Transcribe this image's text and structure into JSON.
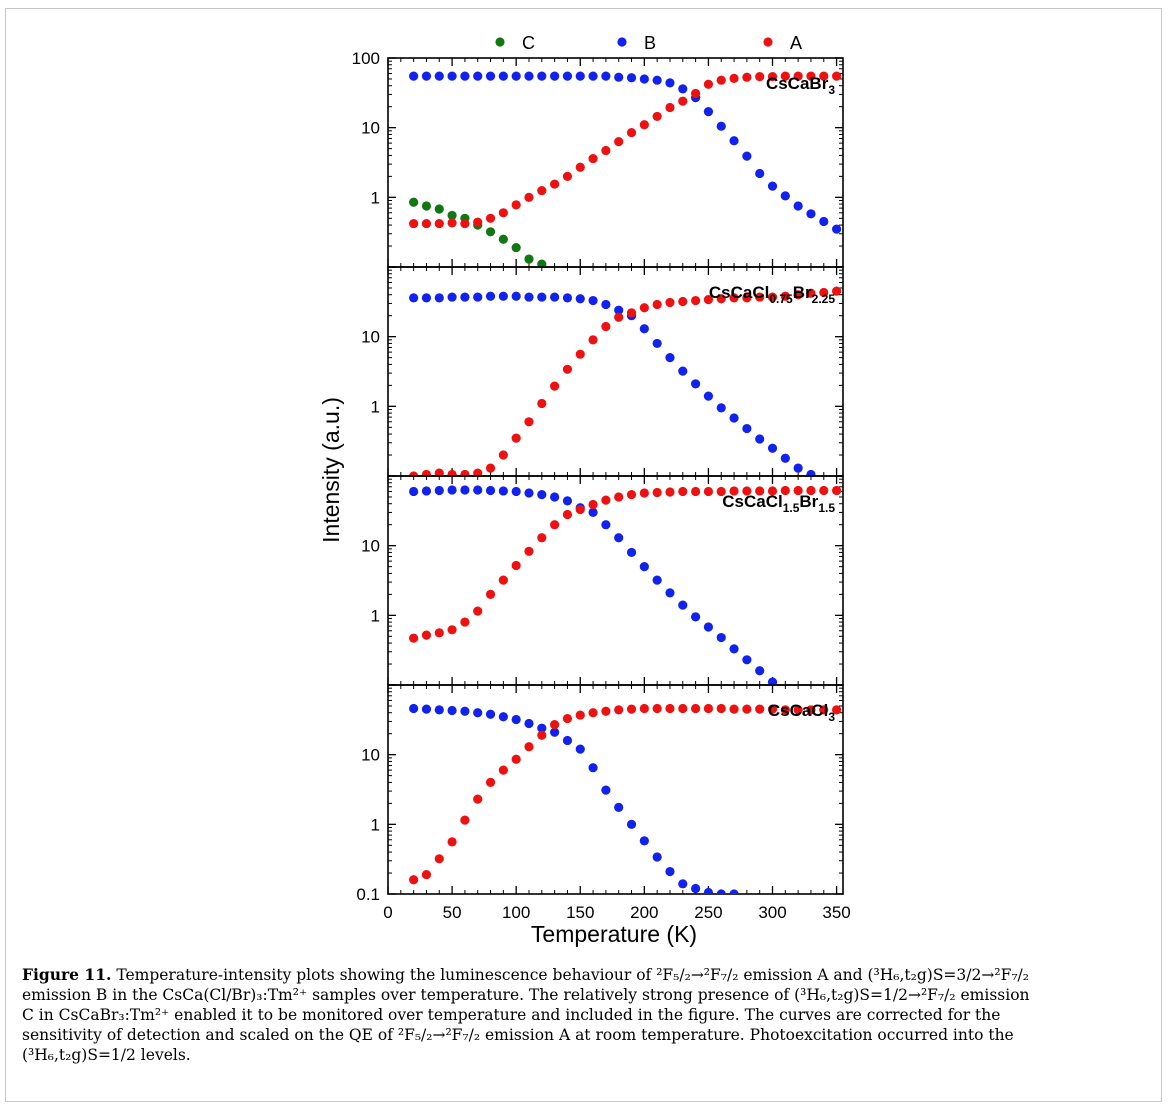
{
  "chart_data": {
    "type": "scatter",
    "xlabel": "Temperature (K)",
    "ylabel": "Intensity (a.u.)",
    "xlim": [
      0,
      355
    ],
    "x_ticks": [
      0,
      50,
      100,
      150,
      200,
      250,
      300,
      350
    ],
    "log_y": true,
    "legend": {
      "placement": "top",
      "entries": [
        "C",
        "B",
        "A"
      ]
    },
    "colors": {
      "A": "#ee1111",
      "B": "#1122ee",
      "C": "#117711"
    },
    "panels": [
      {
        "label": "CsCaBr",
        "sub": "3",
        "label2": "",
        "sub2": "",
        "ylim": [
          0.1,
          100
        ],
        "ytick_labels": [
          "100",
          "10",
          "1"
        ],
        "series": [
          {
            "name": "C",
            "x": [
              20,
              30,
              40,
              50,
              60,
              70,
              80,
              90,
              100,
              110,
              120
            ],
            "y": [
              0.85,
              0.75,
              0.68,
              0.55,
              0.5,
              0.4,
              0.32,
              0.25,
              0.19,
              0.13,
              0.11
            ]
          },
          {
            "name": "B",
            "x": [
              20,
              30,
              40,
              50,
              60,
              70,
              80,
              90,
              100,
              110,
              120,
              130,
              140,
              150,
              160,
              170,
              180,
              190,
              200,
              210,
              220,
              230,
              240,
              250,
              260,
              270,
              280,
              290,
              300,
              310,
              320,
              330,
              340,
              350
            ],
            "y": [
              55,
              55,
              55,
              55,
              55,
              55,
              55,
              55,
              55,
              55,
              55,
              55,
              55,
              55,
              55,
              55,
              53,
              52,
              50,
              48,
              44,
              36,
              27,
              17,
              10.5,
              6.5,
              3.9,
              2.2,
              1.45,
              1.05,
              0.75,
              0.58,
              0.45,
              0.35
            ]
          },
          {
            "name": "A",
            "x": [
              20,
              30,
              40,
              50,
              60,
              70,
              80,
              90,
              100,
              110,
              120,
              130,
              140,
              150,
              160,
              170,
              180,
              190,
              200,
              210,
              220,
              230,
              240,
              250,
              260,
              270,
              280,
              290,
              300,
              310,
              320,
              330,
              340,
              350
            ],
            "y": [
              0.42,
              0.42,
              0.42,
              0.43,
              0.42,
              0.44,
              0.5,
              0.6,
              0.78,
              1.0,
              1.25,
              1.55,
              2.0,
              2.7,
              3.6,
              4.7,
              6.3,
              8.5,
              11,
              14.5,
              19.5,
              24,
              31,
              42,
              48,
              51,
              53,
              54,
              54,
              55,
              55,
              55,
              55,
              55
            ]
          }
        ]
      },
      {
        "label": "CsCaCl",
        "sub": "0.75",
        "label2": "Br",
        "sub2": "2.25",
        "ylim": [
          0.1,
          100
        ],
        "ytick_labels": [
          "10",
          "1"
        ],
        "series": [
          {
            "name": "B",
            "x": [
              20,
              30,
              40,
              50,
              60,
              70,
              80,
              90,
              100,
              110,
              120,
              130,
              140,
              150,
              160,
              170,
              180,
              190,
              200,
              210,
              220,
              230,
              240,
              250,
              260,
              270,
              280,
              290,
              300,
              310,
              320,
              330
            ],
            "y": [
              36,
              36,
              36,
              37,
              37,
              37,
              38,
              38,
              38,
              37,
              37,
              37,
              36,
              35,
              33,
              29,
              24,
              20,
              13,
              8,
              5,
              3.2,
              2.1,
              1.4,
              0.95,
              0.68,
              0.48,
              0.34,
              0.25,
              0.18,
              0.13,
              0.105
            ]
          },
          {
            "name": "A",
            "x": [
              20,
              30,
              40,
              50,
              60,
              70,
              80,
              90,
              100,
              110,
              120,
              130,
              140,
              150,
              160,
              170,
              180,
              190,
              200,
              210,
              220,
              230,
              240,
              250,
              260,
              270,
              280,
              290,
              300,
              310,
              320,
              330,
              340,
              350
            ],
            "y": [
              0.1,
              0.105,
              0.11,
              0.105,
              0.105,
              0.11,
              0.13,
              0.2,
              0.35,
              0.6,
              1.1,
              1.95,
              3.4,
              5.6,
              9,
              14,
              19,
              22,
              26,
              29,
              31,
              32,
              33,
              34,
              35,
              36,
              36,
              37,
              37,
              38,
              40,
              42,
              43,
              45
            ]
          }
        ]
      },
      {
        "label": "CsCaCl",
        "sub": "1.5",
        "label2": "Br",
        "sub2": "1.5",
        "ylim": [
          0.1,
          100
        ],
        "ytick_labels": [
          "10",
          "1"
        ],
        "series": [
          {
            "name": "B",
            "x": [
              20,
              30,
              40,
              50,
              60,
              70,
              80,
              90,
              100,
              110,
              120,
              130,
              140,
              150,
              160,
              170,
              180,
              190,
              200,
              210,
              220,
              230,
              240,
              250,
              260,
              270,
              280,
              290,
              300
            ],
            "y": [
              60,
              61,
              62,
              63,
              63,
              63,
              62,
              61,
              60,
              57,
              54,
              50,
              44,
              35,
              30,
              20,
              13,
              8,
              5,
              3.2,
              2.1,
              1.4,
              0.95,
              0.68,
              0.48,
              0.33,
              0.23,
              0.16,
              0.11
            ]
          },
          {
            "name": "A",
            "x": [
              20,
              30,
              40,
              50,
              60,
              70,
              80,
              90,
              100,
              110,
              120,
              130,
              140,
              150,
              160,
              170,
              180,
              190,
              200,
              210,
              220,
              230,
              240,
              250,
              260,
              270,
              280,
              290,
              300,
              310,
              320,
              330,
              340,
              350
            ],
            "y": [
              0.47,
              0.52,
              0.56,
              0.62,
              0.8,
              1.15,
              2.0,
              3.2,
              5.2,
              8.3,
              13,
              20,
              28,
              33,
              39,
              45,
              50,
              54,
              57,
              58,
              59,
              60,
              60,
              60,
              60,
              61,
              61,
              61,
              61,
              62,
              62,
              62,
              62,
              62
            ]
          }
        ]
      },
      {
        "label": "CsCaCl",
        "sub": "3",
        "label2": "",
        "sub2": "",
        "ylim": [
          0.1,
          100
        ],
        "ytick_labels": [
          "10",
          "1",
          "0.1"
        ],
        "series": [
          {
            "name": "B",
            "x": [
              20,
              30,
              40,
              50,
              60,
              70,
              80,
              90,
              100,
              110,
              120,
              130,
              140,
              150,
              160,
              170,
              180,
              190,
              200,
              210,
              220,
              230,
              240,
              250,
              260,
              270
            ],
            "y": [
              46,
              45,
              44,
              43,
              42,
              40,
              38,
              35,
              32,
              28,
              24,
              21,
              16,
              12,
              6.5,
              3.1,
              1.75,
              1.0,
              0.58,
              0.34,
              0.21,
              0.14,
              0.12,
              0.105,
              0.1,
              0.1
            ]
          },
          {
            "name": "A",
            "x": [
              20,
              30,
              40,
              50,
              60,
              70,
              80,
              90,
              100,
              110,
              120,
              130,
              140,
              150,
              160,
              170,
              180,
              190,
              200,
              210,
              220,
              230,
              240,
              250,
              260,
              270,
              280,
              290,
              300,
              310,
              320,
              330,
              340,
              350
            ],
            "y": [
              0.16,
              0.19,
              0.32,
              0.56,
              1.15,
              2.3,
              4.0,
              6.0,
              8.6,
              13,
              19,
              27,
              33,
              37,
              40,
              42,
              44,
              45,
              46,
              46,
              46,
              46,
              46,
              46,
              46,
              45,
              45,
              45,
              45,
              44,
              44,
              44,
              44,
              44
            ]
          }
        ]
      }
    ]
  },
  "caption": {
    "fig_label": "Figure 11.",
    "lines": [
      " Temperature-intensity plots showing the luminescence behaviour of ²F₅/₂→²F₇/₂ emission A and (³H₆,t₂g)S=3/2→²F₇/₂",
      "emission B in the CsCa(Cl/Br)₃:Tm²⁺ samples over temperature. The relatively strong presence of (³H₆,t₂g)S=1/2→²F₇/₂ emission",
      "C in CsCaBr₃:Tm²⁺ enabled it to be monitored over temperature and included in the figure. The curves are corrected for the",
      "sensitivity of detection and scaled on the QE of ²F₅/₂→²F₇/₂ emission A at room temperature. Photoexcitation occurred into the",
      "(³H₆,t₂g)S=1/2 levels."
    ]
  }
}
